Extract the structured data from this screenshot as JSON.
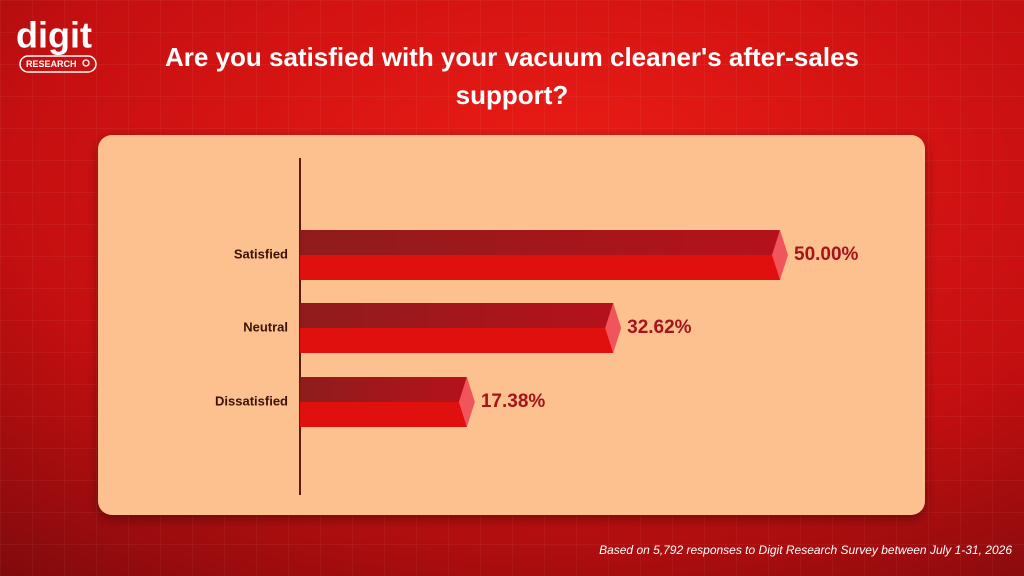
{
  "logo": {
    "text": "digit",
    "subtext": "RESEARCH"
  },
  "chart_data": {
    "type": "bar",
    "orientation": "horizontal",
    "title": "Are you satisfied with your vacuum cleaner's after-sales support?",
    "categories": [
      "Satisfied",
      "Neutral",
      "Dissatisfied"
    ],
    "values": [
      50,
      32.62,
      17.38
    ],
    "value_labels": [
      "50.00%",
      "32.62%",
      "17.38%"
    ],
    "color": "#e0100f",
    "note": "Based on 5,792 responses to Digit Research Survey between July 1-31, 2026"
  }
}
